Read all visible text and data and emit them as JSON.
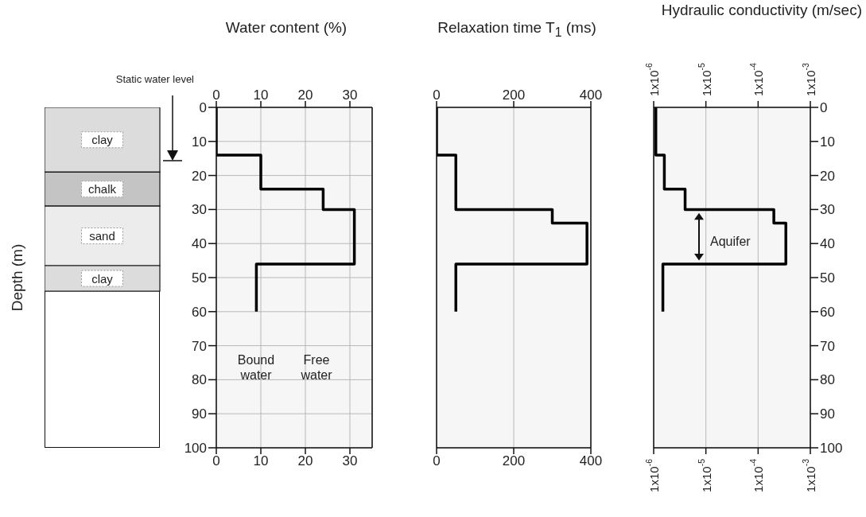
{
  "chart_data": [
    {
      "type": "bar",
      "stacked": true,
      "ylabel": "Depth (m)",
      "categories": [
        null
      ],
      "ylim": [
        100,
        0
      ],
      "tick_labels": false,
      "series": [
        {
          "name": "clay",
          "color": "#dcdcdc",
          "values": [
            19
          ]
        },
        {
          "name": "chalk",
          "color": "#c4c4c4",
          "values": [
            10
          ]
        },
        {
          "name": "sand",
          "color": "#ececec",
          "values": [
            17.5
          ]
        },
        {
          "name": "clay",
          "color": "#dcdcdc",
          "values": [
            7.5
          ]
        }
      ],
      "annotations": [
        "Static water level"
      ]
    },
    {
      "type": "line",
      "xlabel": "Water content (%)",
      "x": [
        0,
        0,
        10,
        10,
        24,
        24,
        31,
        31,
        9,
        9
      ],
      "values": [
        0,
        14,
        14,
        24,
        24,
        30,
        30,
        46,
        46,
        60
      ],
      "color": "#000000",
      "xlim": [
        0,
        35
      ],
      "xticks": [
        0,
        10,
        20,
        30
      ],
      "x2lim": [
        0,
        35
      ],
      "x2ticks": [
        0,
        10,
        20,
        30
      ],
      "ylim": [
        100,
        0
      ],
      "yticks": [
        0,
        10,
        20,
        30,
        40,
        50,
        60,
        70,
        80,
        90,
        100
      ],
      "grid": true,
      "annotations": [
        "Bound water",
        "Free water"
      ]
    },
    {
      "type": "line",
      "xlabel": "Relaxation time T$_{1}$ (ms)",
      "x": [
        0,
        0,
        50,
        50,
        300,
        300,
        390,
        390,
        50,
        50
      ],
      "values": [
        0,
        14,
        14,
        30,
        30,
        34,
        34,
        46,
        46,
        60
      ],
      "color": "#000000",
      "xlim": [
        0,
        400
      ],
      "xticks": [
        0,
        200,
        400
      ],
      "x2lim": [
        0,
        400
      ],
      "x2ticks": [
        0,
        200,
        400
      ],
      "ylim": [
        100,
        0
      ],
      "yticks": [
        0,
        10,
        20,
        30,
        40,
        50,
        60,
        70,
        80,
        90,
        100
      ],
      "grid": true,
      "tick_labels": "x"
    },
    {
      "type": "line",
      "xlabel": "Hydraulic conductivity (m/sec)",
      "x": [
        1.1e-06,
        1.1e-06,
        1.6e-06,
        1.6e-06,
        4e-06,
        4e-06,
        0.0002,
        0.0002,
        0.00034,
        0.00034,
        1.5e-06,
        1.5e-06
      ],
      "values": [
        0,
        14,
        14,
        24,
        24,
        30,
        30,
        34,
        34,
        46,
        46,
        60
      ],
      "color": "#000000",
      "log": "x",
      "xlim": [
        1e-06,
        0.001
      ],
      "xticks": [
        {
          "value": 1e-06,
          "label": "1x10$^{-6}$"
        },
        {
          "value": 1e-05,
          "label": "1x10$^{-5}$"
        },
        {
          "value": 0.0001,
          "label": "1x10$^{-4}$"
        },
        {
          "value": 0.001,
          "label": "1x10$^{-3}$"
        }
      ],
      "ylim": [
        100,
        0
      ],
      "yticks": [
        0,
        10,
        20,
        30,
        40,
        50,
        60,
        70,
        80,
        90,
        100
      ],
      "grid": true,
      "annotations": [
        "Aquifer"
      ]
    }
  ]
}
